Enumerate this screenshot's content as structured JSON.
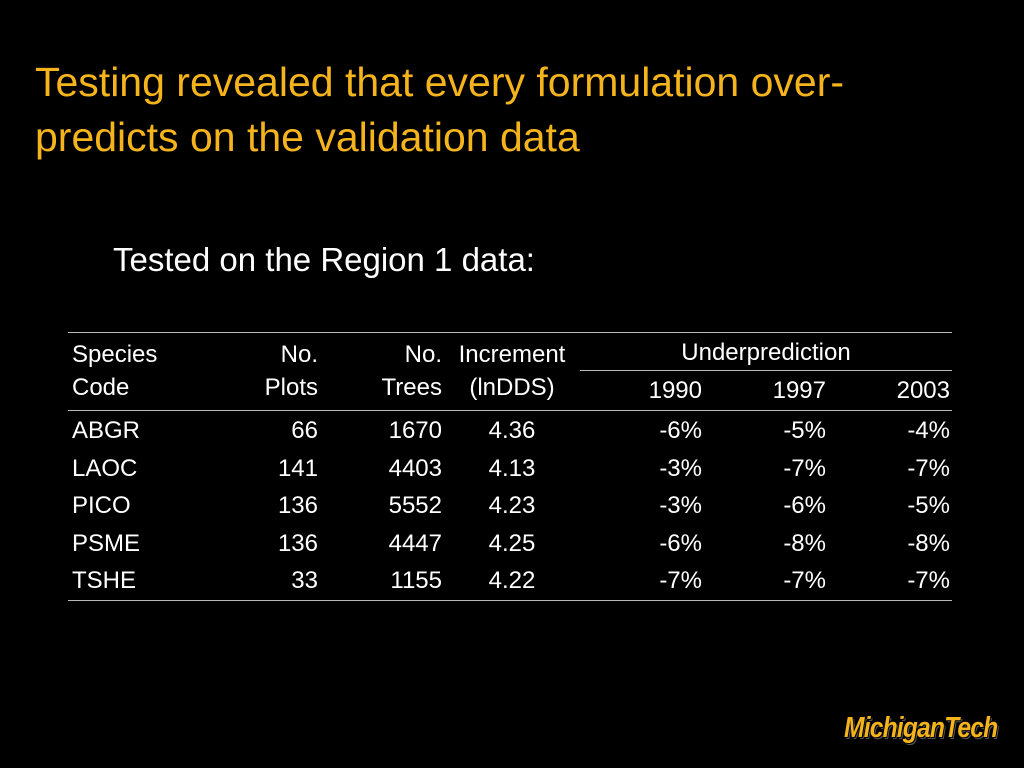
{
  "title": [
    "Testing revealed that every formulation over-",
    "predicts on the validation data"
  ],
  "subtitle": "Tested on the Region 1 data:",
  "table": {
    "headers": [
      [
        "Species",
        "Code"
      ],
      [
        "No.",
        "Plots"
      ],
      [
        "No.",
        "Trees"
      ],
      [
        "Increment",
        "(lnDDS)"
      ]
    ],
    "group": "Underprediction",
    "years": [
      "1990",
      "1997",
      "2003"
    ],
    "rows": [
      [
        "ABGR",
        "66",
        "1670",
        "4.36",
        "-6%",
        "-5%",
        "-4%"
      ],
      [
        "LAOC",
        "141",
        "4403",
        "4.13",
        "-3%",
        "-7%",
        "-7%"
      ],
      [
        "PICO",
        "136",
        "5552",
        "4.23",
        "-3%",
        "-6%",
        "-5%"
      ],
      [
        "PSME",
        "136",
        "4447",
        "4.25",
        "-6%",
        "-8%",
        "-8%"
      ],
      [
        "TSHE",
        "33",
        "1155",
        "4.22",
        "-7%",
        "-7%",
        "-7%"
      ]
    ]
  },
  "logo": "MichiganTech"
}
